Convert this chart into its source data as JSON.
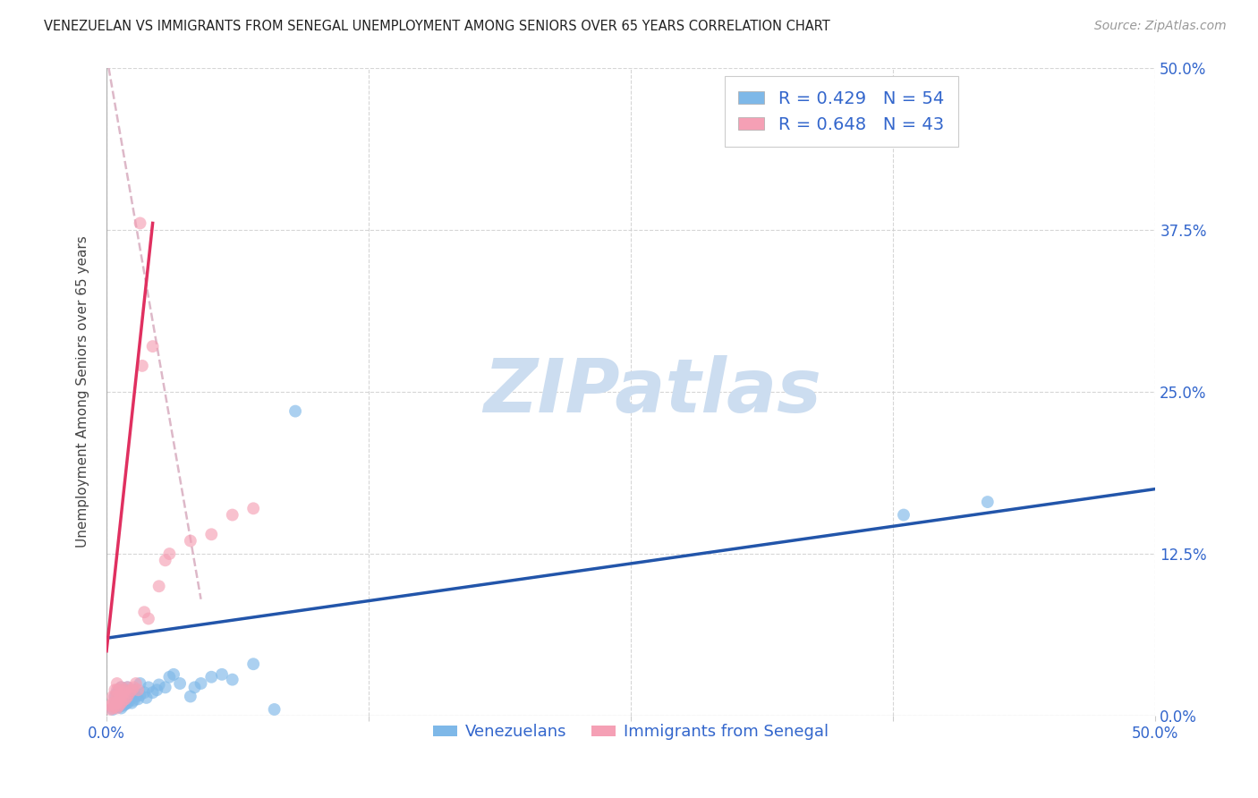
{
  "title": "VENEZUELAN VS IMMIGRANTS FROM SENEGAL UNEMPLOYMENT AMONG SENIORS OVER 65 YEARS CORRELATION CHART",
  "source": "Source: ZipAtlas.com",
  "xlabel_blue": "Venezuelans",
  "xlabel_pink": "Immigrants from Senegal",
  "ylabel": "Unemployment Among Seniors over 65 years",
  "xlim": [
    0.0,
    0.5
  ],
  "ylim": [
    0.0,
    0.5
  ],
  "blue_R": 0.429,
  "blue_N": 54,
  "pink_R": 0.648,
  "pink_N": 43,
  "blue_color": "#7EB8E8",
  "pink_color": "#F5A0B5",
  "blue_line_color": "#2255AA",
  "pink_line_color": "#E03060",
  "pink_dashed_color": "#DDB8C8",
  "legend_text_color": "#3366CC",
  "watermark_color": "#CCDDF0",
  "blue_scatter_x": [
    0.003,
    0.004,
    0.004,
    0.005,
    0.005,
    0.005,
    0.006,
    0.006,
    0.006,
    0.006,
    0.007,
    0.007,
    0.007,
    0.007,
    0.008,
    0.008,
    0.008,
    0.009,
    0.009,
    0.009,
    0.01,
    0.01,
    0.01,
    0.011,
    0.011,
    0.012,
    0.012,
    0.013,
    0.013,
    0.014,
    0.015,
    0.016,
    0.016,
    0.018,
    0.019,
    0.02,
    0.022,
    0.024,
    0.025,
    0.028,
    0.03,
    0.032,
    0.035,
    0.04,
    0.042,
    0.045,
    0.05,
    0.055,
    0.06,
    0.07,
    0.08,
    0.09,
    0.38,
    0.42
  ],
  "blue_scatter_y": [
    0.005,
    0.01,
    0.015,
    0.008,
    0.012,
    0.018,
    0.007,
    0.01,
    0.015,
    0.02,
    0.006,
    0.01,
    0.015,
    0.022,
    0.008,
    0.012,
    0.018,
    0.009,
    0.014,
    0.02,
    0.01,
    0.015,
    0.022,
    0.012,
    0.018,
    0.01,
    0.016,
    0.012,
    0.02,
    0.015,
    0.013,
    0.016,
    0.025,
    0.018,
    0.014,
    0.022,
    0.018,
    0.02,
    0.024,
    0.022,
    0.03,
    0.032,
    0.025,
    0.015,
    0.022,
    0.025,
    0.03,
    0.032,
    0.028,
    0.04,
    0.005,
    0.235,
    0.155,
    0.165
  ],
  "pink_scatter_x": [
    0.002,
    0.002,
    0.003,
    0.003,
    0.003,
    0.004,
    0.004,
    0.004,
    0.004,
    0.005,
    0.005,
    0.005,
    0.005,
    0.005,
    0.006,
    0.006,
    0.006,
    0.007,
    0.007,
    0.007,
    0.008,
    0.008,
    0.009,
    0.009,
    0.01,
    0.01,
    0.011,
    0.012,
    0.013,
    0.014,
    0.015,
    0.016,
    0.017,
    0.018,
    0.02,
    0.022,
    0.025,
    0.028,
    0.03,
    0.04,
    0.05,
    0.06,
    0.07
  ],
  "pink_scatter_y": [
    0.005,
    0.008,
    0.006,
    0.01,
    0.015,
    0.007,
    0.01,
    0.015,
    0.02,
    0.006,
    0.01,
    0.015,
    0.02,
    0.025,
    0.008,
    0.013,
    0.02,
    0.01,
    0.015,
    0.022,
    0.012,
    0.018,
    0.013,
    0.02,
    0.015,
    0.022,
    0.018,
    0.02,
    0.022,
    0.025,
    0.02,
    0.38,
    0.27,
    0.08,
    0.075,
    0.285,
    0.1,
    0.12,
    0.125,
    0.135,
    0.14,
    0.155,
    0.16
  ],
  "blue_trend_x": [
    0.0,
    0.5
  ],
  "blue_trend_y_start": 0.06,
  "blue_trend_y_end": 0.175,
  "pink_trend_solid_x1": 0.0,
  "pink_trend_solid_x2": 0.022,
  "pink_trend_solid_y1": 0.05,
  "pink_trend_solid_y2": 0.38,
  "pink_trend_dashed_x1": 0.001,
  "pink_trend_dashed_x2": 0.045,
  "pink_trend_dashed_y1": 0.5,
  "pink_trend_dashed_y2": 0.09
}
